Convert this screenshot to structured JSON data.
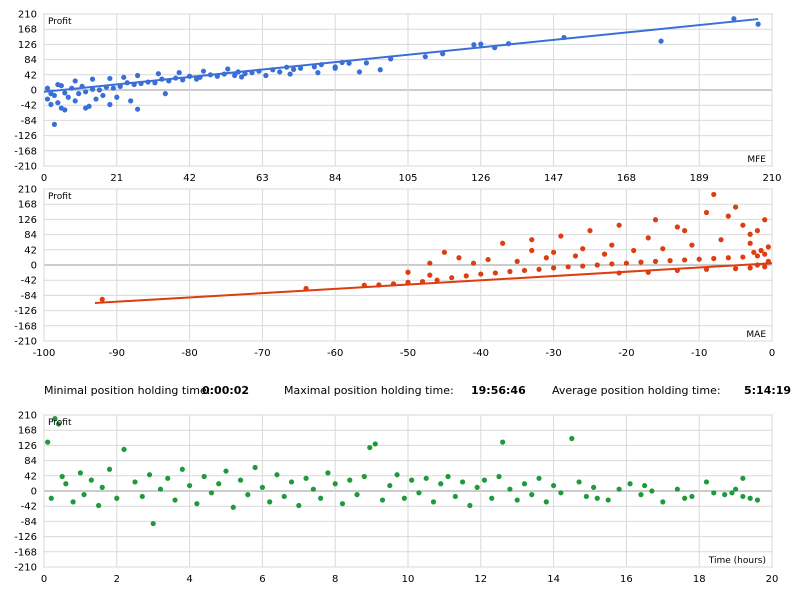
{
  "stats": {
    "min_label": "Minimal position holding time:",
    "min_value": "0:00:02",
    "max_label": "Maximal position holding time:",
    "max_value": "19:56:46",
    "avg_label": "Average position holding time:",
    "avg_value": "5:14:19"
  },
  "chart_data": [
    {
      "type": "scatter",
      "ylabel": "Profit",
      "xlabel": "MFE",
      "color": "#3a6fd8",
      "xlim": [
        0,
        210
      ],
      "ylim": [
        -210,
        210
      ],
      "xticks": [
        0,
        21,
        42,
        63,
        84,
        105,
        126,
        147,
        168,
        189,
        210
      ],
      "yticks": [
        210,
        168,
        126,
        84,
        42,
        0,
        -42,
        -84,
        -126,
        -168,
        -210
      ],
      "grid": true,
      "trend_line": {
        "x": [
          0,
          206
        ],
        "y": [
          -5,
          196
        ]
      },
      "points": [
        [
          199,
          197
        ],
        [
          206,
          182
        ],
        [
          178,
          135
        ],
        [
          150,
          145
        ],
        [
          134,
          128
        ],
        [
          124,
          125
        ],
        [
          126,
          127
        ],
        [
          130,
          117
        ],
        [
          115,
          100
        ],
        [
          110,
          92
        ],
        [
          100,
          86
        ],
        [
          93,
          75
        ],
        [
          88,
          74
        ],
        [
          84,
          64
        ],
        [
          84,
          60
        ],
        [
          86,
          76
        ],
        [
          80,
          70
        ],
        [
          78,
          64
        ],
        [
          74,
          60
        ],
        [
          72,
          57
        ],
        [
          70,
          63
        ],
        [
          68,
          50
        ],
        [
          66,
          56
        ],
        [
          62,
          52
        ],
        [
          60,
          48
        ],
        [
          58,
          45
        ],
        [
          56,
          50
        ],
        [
          55,
          40
        ],
        [
          52,
          44
        ],
        [
          50,
          38
        ],
        [
          48,
          42
        ],
        [
          45,
          35
        ],
        [
          44,
          30
        ],
        [
          42,
          38
        ],
        [
          40,
          28
        ],
        [
          38,
          33
        ],
        [
          36,
          25
        ],
        [
          34,
          30
        ],
        [
          32,
          20
        ],
        [
          30,
          22
        ],
        [
          28,
          18
        ],
        [
          26,
          15
        ],
        [
          24,
          20
        ],
        [
          22,
          10
        ],
        [
          21,
          -20
        ],
        [
          20,
          5
        ],
        [
          18,
          8
        ],
        [
          17,
          -15
        ],
        [
          16,
          0
        ],
        [
          15,
          -25
        ],
        [
          14,
          2
        ],
        [
          12,
          -5
        ],
        [
          11,
          10
        ],
        [
          10,
          -10
        ],
        [
          9,
          -30
        ],
        [
          8,
          5
        ],
        [
          7,
          -20
        ],
        [
          6,
          -8
        ],
        [
          5,
          12
        ],
        [
          4,
          -35
        ],
        [
          3,
          -15
        ],
        [
          2,
          -40
        ],
        [
          1,
          -25
        ],
        [
          3,
          -95
        ],
        [
          27,
          -53
        ],
        [
          35,
          -10
        ],
        [
          25,
          -30
        ],
        [
          19,
          -40
        ],
        [
          13,
          -45
        ],
        [
          12,
          -50
        ],
        [
          6,
          -55
        ],
        [
          5,
          -50
        ],
        [
          2,
          -10
        ],
        [
          1,
          5
        ],
        [
          4,
          15
        ],
        [
          9,
          25
        ],
        [
          14,
          30
        ],
        [
          19,
          32
        ],
        [
          23,
          35
        ],
        [
          27,
          40
        ],
        [
          33,
          45
        ],
        [
          39,
          48
        ],
        [
          46,
          52
        ],
        [
          53,
          58
        ],
        [
          57,
          36
        ],
        [
          64,
          40
        ],
        [
          71,
          44
        ],
        [
          79,
          48
        ],
        [
          91,
          50
        ],
        [
          97,
          56
        ]
      ]
    },
    {
      "type": "scatter",
      "ylabel": "Profit",
      "xlabel": "MAE",
      "color": "#dd3d10",
      "xlim": [
        -100,
        0
      ],
      "ylim": [
        -210,
        210
      ],
      "xticks": [
        -100,
        -90,
        -80,
        -70,
        -60,
        -50,
        -40,
        -30,
        -20,
        -10,
        0
      ],
      "yticks": [
        210,
        168,
        126,
        84,
        42,
        0,
        -42,
        -84,
        -126,
        -168,
        -210
      ],
      "grid": true,
      "trend_line": {
        "x": [
          -93,
          0
        ],
        "y": [
          -105,
          5
        ]
      },
      "points": [
        [
          -92,
          -95
        ],
        [
          -64,
          -65
        ],
        [
          -56,
          -56
        ],
        [
          -54,
          -55
        ],
        [
          -52,
          -52
        ],
        [
          -50,
          -48
        ],
        [
          -48,
          -46
        ],
        [
          -46,
          -42
        ],
        [
          -47,
          -28
        ],
        [
          -44,
          -35
        ],
        [
          -42,
          -30
        ],
        [
          -40,
          -25
        ],
        [
          -41,
          5
        ],
        [
          -38,
          -22
        ],
        [
          -36,
          -18
        ],
        [
          -34,
          -15
        ],
        [
          -35,
          10
        ],
        [
          -32,
          -12
        ],
        [
          -30,
          -8
        ],
        [
          -31,
          20
        ],
        [
          -28,
          -5
        ],
        [
          -26,
          -3
        ],
        [
          -27,
          25
        ],
        [
          -24,
          0
        ],
        [
          -22,
          3
        ],
        [
          -23,
          30
        ],
        [
          -20,
          5
        ],
        [
          -18,
          8
        ],
        [
          -19,
          40
        ],
        [
          -16,
          10
        ],
        [
          -14,
          12
        ],
        [
          -15,
          45
        ],
        [
          -12,
          14
        ],
        [
          -10,
          16
        ],
        [
          -11,
          55
        ],
        [
          -8,
          18
        ],
        [
          -6,
          20
        ],
        [
          -7,
          70
        ],
        [
          -4,
          22
        ],
        [
          -2,
          25
        ],
        [
          -3,
          85
        ],
        [
          -1,
          30
        ],
        [
          -8,
          195
        ],
        [
          -5,
          160
        ],
        [
          -9,
          145
        ],
        [
          -13,
          105
        ],
        [
          -16,
          125
        ],
        [
          -21,
          110
        ],
        [
          -25,
          95
        ],
        [
          -29,
          80
        ],
        [
          -33,
          70
        ],
        [
          -37,
          60
        ],
        [
          -45,
          35
        ],
        [
          -50,
          -20
        ],
        [
          -1,
          125
        ],
        [
          -2,
          95
        ],
        [
          -3,
          60
        ],
        [
          -4,
          110
        ],
        [
          -6,
          135
        ],
        [
          -12,
          95
        ],
        [
          -17,
          75
        ],
        [
          -22,
          55
        ],
        [
          -26,
          45
        ],
        [
          -30,
          35
        ],
        [
          -33,
          40
        ],
        [
          -39,
          15
        ],
        [
          -43,
          20
        ],
        [
          -47,
          5
        ],
        [
          -0.5,
          50
        ],
        [
          -1.5,
          40
        ],
        [
          -2.5,
          35
        ],
        [
          -0.5,
          10
        ],
        [
          -1,
          -5
        ],
        [
          -2,
          0
        ],
        [
          -3,
          -8
        ],
        [
          -5,
          -10
        ],
        [
          -9,
          -12
        ],
        [
          -13,
          -15
        ],
        [
          -17,
          -20
        ],
        [
          -21,
          -22
        ]
      ]
    },
    {
      "type": "scatter",
      "ylabel": "Profit",
      "xlabel": "Time (hours)",
      "color": "#1f9a3a",
      "xlim": [
        0,
        20
      ],
      "ylim": [
        -210,
        210
      ],
      "xticks": [
        0,
        2,
        4,
        6,
        8,
        10,
        12,
        14,
        16,
        18,
        20
      ],
      "yticks": [
        210,
        168,
        126,
        84,
        42,
        0,
        -42,
        -84,
        -126,
        -168,
        -210
      ],
      "grid": true,
      "points": [
        [
          0.1,
          135
        ],
        [
          0.3,
          200
        ],
        [
          0.4,
          185
        ],
        [
          0.2,
          -20
        ],
        [
          0.5,
          40
        ],
        [
          0.6,
          20
        ],
        [
          0.8,
          -30
        ],
        [
          1.0,
          50
        ],
        [
          1.1,
          -10
        ],
        [
          1.3,
          30
        ],
        [
          1.5,
          -40
        ],
        [
          1.6,
          10
        ],
        [
          1.8,
          60
        ],
        [
          2.0,
          -20
        ],
        [
          2.2,
          115
        ],
        [
          2.5,
          25
        ],
        [
          2.7,
          -15
        ],
        [
          2.9,
          45
        ],
        [
          3.0,
          -90
        ],
        [
          3.2,
          5
        ],
        [
          3.4,
          35
        ],
        [
          3.6,
          -25
        ],
        [
          3.8,
          60
        ],
        [
          4.0,
          15
        ],
        [
          4.2,
          -35
        ],
        [
          4.4,
          40
        ],
        [
          4.6,
          -5
        ],
        [
          4.8,
          20
        ],
        [
          5.0,
          55
        ],
        [
          5.2,
          -45
        ],
        [
          5.4,
          30
        ],
        [
          5.6,
          -10
        ],
        [
          5.8,
          65
        ],
        [
          6.0,
          10
        ],
        [
          6.2,
          -30
        ],
        [
          6.4,
          45
        ],
        [
          6.6,
          -15
        ],
        [
          6.8,
          25
        ],
        [
          7.0,
          -40
        ],
        [
          7.2,
          35
        ],
        [
          7.4,
          5
        ],
        [
          7.6,
          -20
        ],
        [
          7.8,
          50
        ],
        [
          8.0,
          20
        ],
        [
          8.2,
          -35
        ],
        [
          8.4,
          30
        ],
        [
          8.6,
          -10
        ],
        [
          8.8,
          40
        ],
        [
          8.95,
          120
        ],
        [
          9.1,
          130
        ],
        [
          9.3,
          -25
        ],
        [
          9.5,
          15
        ],
        [
          9.7,
          45
        ],
        [
          9.9,
          -20
        ],
        [
          10.1,
          30
        ],
        [
          10.3,
          -5
        ],
        [
          10.5,
          35
        ],
        [
          10.7,
          -30
        ],
        [
          10.9,
          20
        ],
        [
          11.1,
          40
        ],
        [
          11.3,
          -15
        ],
        [
          11.5,
          25
        ],
        [
          11.7,
          -40
        ],
        [
          11.9,
          10
        ],
        [
          12.1,
          30
        ],
        [
          12.3,
          -20
        ],
        [
          12.5,
          40
        ],
        [
          12.6,
          135
        ],
        [
          12.8,
          5
        ],
        [
          13.0,
          -25
        ],
        [
          13.2,
          20
        ],
        [
          13.4,
          -10
        ],
        [
          13.6,
          35
        ],
        [
          13.8,
          -30
        ],
        [
          14.0,
          15
        ],
        [
          14.2,
          -5
        ],
        [
          14.5,
          145
        ],
        [
          14.7,
          25
        ],
        [
          14.9,
          -15
        ],
        [
          15.1,
          10
        ],
        [
          15.5,
          -25
        ],
        [
          15.8,
          5
        ],
        [
          16.1,
          20
        ],
        [
          16.4,
          -10
        ],
        [
          16.7,
          0
        ],
        [
          17.0,
          -30
        ],
        [
          17.4,
          5
        ],
        [
          17.8,
          -15
        ],
        [
          18.2,
          25
        ],
        [
          18.4,
          -5
        ],
        [
          18.7,
          -10
        ],
        [
          19.0,
          5
        ],
        [
          19.2,
          35
        ],
        [
          19.4,
          -20
        ],
        [
          19.6,
          -25
        ],
        [
          19.2,
          -15
        ],
        [
          18.9,
          -5
        ],
        [
          17.6,
          -20
        ],
        [
          16.5,
          15
        ],
        [
          15.2,
          -20
        ]
      ]
    }
  ]
}
